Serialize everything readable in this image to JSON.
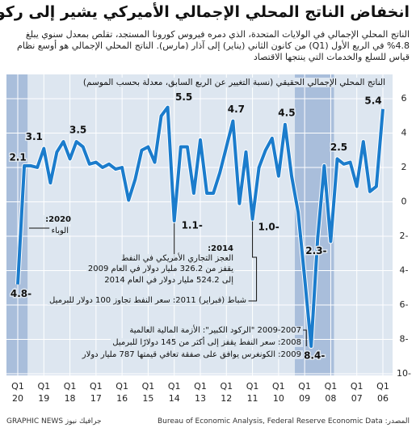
{
  "chart_data": {
    "type": "line",
    "title": "انخفاض الناتج المحلي الإجمالي الأميركي يشير إلى ركود",
    "subtitle": "الناتج المحلي الإجمالي في الولايات المتحدة، الذي دمره فيروس كورونا المستجد، تقلص بمعدل سنوي يبلغ 4.8% في الربع الأول (Q1) من كانون الثاني (يناير) إلى آذار (مارس). الناتج المحلي الإجمالي هو أوسع نظام قياس للسلع والخدمات التي ينتجها الاقتصاد",
    "y_label": "الناتج المحلي الإجمالي الحقيقي (نسبة التغيير عن الربع السابق، معدلة بحسب الموسم)",
    "categories": [
      "Q1",
      null,
      null,
      null,
      "Q1",
      null,
      null,
      null,
      "Q1",
      null,
      null,
      null,
      "Q1",
      null,
      null,
      null,
      "Q1",
      null,
      null,
      null,
      "Q1",
      null,
      null,
      null,
      "Q1",
      null,
      null,
      null,
      "Q1",
      null,
      null,
      null,
      "Q1",
      null,
      null,
      null,
      "Q1",
      null,
      null,
      null,
      "Q1",
      null,
      null,
      null,
      "Q1",
      null,
      null,
      null,
      "Q1",
      null,
      null,
      null,
      "Q1",
      null,
      null,
      null,
      "Q1"
    ],
    "category_years": [
      "06",
      null,
      null,
      null,
      "07",
      null,
      null,
      null,
      "08",
      null,
      null,
      null,
      "09",
      null,
      null,
      null,
      "10",
      null,
      null,
      null,
      "11",
      null,
      null,
      null,
      "12",
      null,
      null,
      null,
      "13",
      null,
      null,
      null,
      "14",
      null,
      null,
      null,
      "15",
      null,
      null,
      null,
      "16",
      null,
      null,
      null,
      "17",
      null,
      null,
      null,
      "18",
      null,
      null,
      null,
      "19",
      null,
      null,
      null,
      "20"
    ],
    "values": [
      5.4,
      0.9,
      0.6,
      3.5,
      0.9,
      2.3,
      2.2,
      2.5,
      -2.3,
      2.1,
      -2.1,
      -8.4,
      -4.4,
      -0.6,
      1.5,
      4.5,
      1.5,
      3.7,
      3.0,
      2.0,
      -1.0,
      2.9,
      -0.1,
      4.7,
      3.2,
      1.7,
      0.5,
      0.5,
      3.6,
      0.5,
      3.2,
      3.2,
      -1.1,
      5.5,
      5.0,
      2.3,
      3.2,
      3.0,
      1.3,
      0.1,
      2.0,
      1.9,
      2.2,
      2.0,
      2.3,
      2.2,
      3.2,
      3.5,
      2.5,
      3.5,
      2.9,
      1.1,
      3.1,
      2.0,
      2.1,
      2.1,
      -4.8
    ],
    "value_labels": [
      "5.4",
      null,
      null,
      null,
      null,
      null,
      null,
      "2.5",
      "2.3-",
      null,
      null,
      "8.4-",
      null,
      null,
      null,
      "4.5",
      null,
      null,
      null,
      null,
      "1.0-",
      null,
      null,
      "4.7",
      null,
      null,
      null,
      null,
      null,
      null,
      null,
      null,
      "1.1-",
      "5.5",
      null,
      null,
      null,
      null,
      null,
      null,
      null,
      null,
      null,
      null,
      null,
      null,
      null,
      "3.5",
      null,
      null,
      null,
      null,
      "3.1",
      null,
      null,
      "2.1",
      "4.8-"
    ],
    "color": "#1b7ccc",
    "ylim": [
      -10,
      6
    ],
    "yticks": [
      6,
      4,
      2,
      0,
      {
        "value": -2,
        "label": "2-"
      },
      {
        "value": -4,
        "label": "4-"
      },
      {
        "value": -6,
        "label": "6-"
      },
      {
        "value": -8,
        "label": "8-"
      },
      {
        "value": -10,
        "label": "10-"
      }
    ],
    "grid": true,
    "recession_bands": [
      [
        8,
        13
      ],
      [
        56,
        56
      ]
    ],
    "annotations": [
      "2020:",
      "الوباء",
      "2014:",
      "العجز التجاري الأمريكي في النفط",
      "يقفز من 326.2 مليار دولار في العام 2009",
      "إلى 524.2 مليار دولار في العام 2014",
      "شباط (فبراير) 2011: سعر النفط تجاوز 100 دولار للبرميل",
      "2009-2007 \"الركود الكبير\": الأزمة المالية العالمية",
      "2008: سعر النفط يقفز إلى أكثر من 145 دولارًا للبرميل",
      "2009: الكونغرس يوافق على صفقة تعافي قيمتها 787 مليار دولار"
    ],
    "source": "المصدر: Bureau of Economic Analysis, Federal Reserve Economic Data",
    "credit": "GRAPHIC NEWS جرافيك نيوز"
  }
}
